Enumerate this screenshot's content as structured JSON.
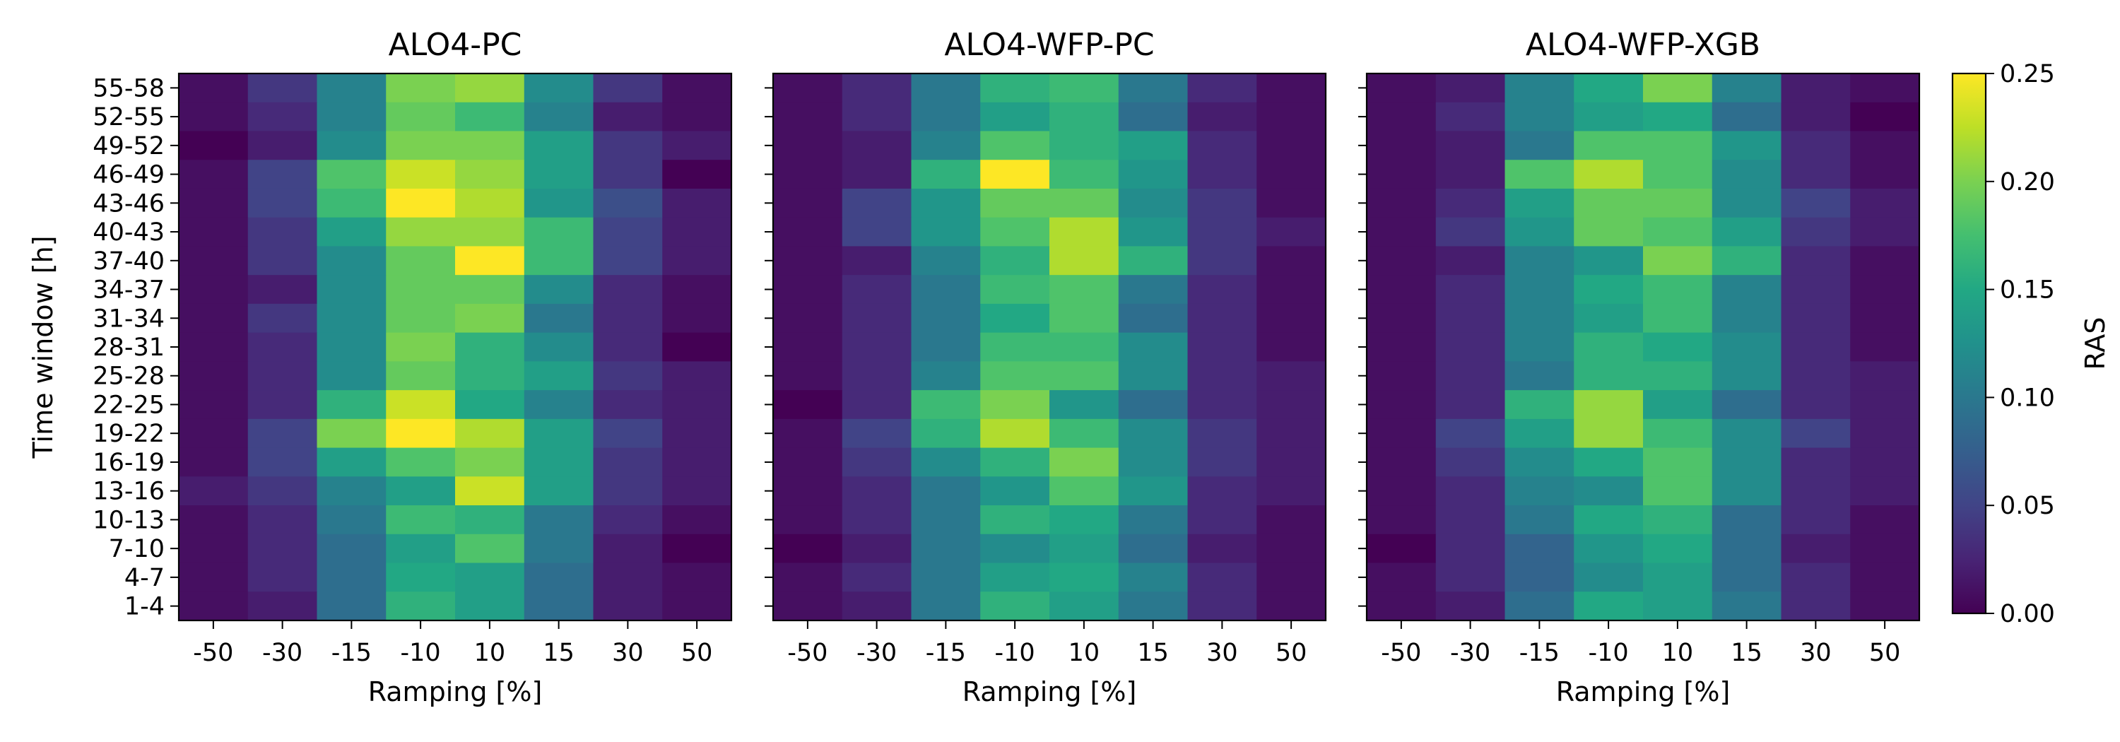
{
  "chart_data": [
    {
      "type": "heatmap",
      "title": "ALO4-PC",
      "xlabel": "Ramping [%]",
      "ylabel": "Time window [h]",
      "x_categories": [
        "-50",
        "-30",
        "-15",
        "-10",
        "10",
        "15",
        "30",
        "50"
      ],
      "y_categories": [
        "55-58",
        "52-55",
        "49-52",
        "46-49",
        "43-46",
        "40-43",
        "37-40",
        "34-37",
        "31-34",
        "28-31",
        "25-28",
        "22-25",
        "19-22",
        "16-19",
        "13-16",
        "10-13",
        "7-10",
        "4-7",
        "1-4"
      ],
      "values": [
        [
          0.01,
          0.04,
          0.11,
          0.2,
          0.21,
          0.12,
          0.04,
          0.01
        ],
        [
          0.01,
          0.03,
          0.11,
          0.19,
          0.17,
          0.11,
          0.02,
          0.01
        ],
        [
          0.0,
          0.02,
          0.12,
          0.2,
          0.2,
          0.14,
          0.04,
          0.02
        ],
        [
          0.01,
          0.05,
          0.18,
          0.23,
          0.21,
          0.14,
          0.04,
          0.0
        ],
        [
          0.01,
          0.05,
          0.17,
          0.25,
          0.22,
          0.13,
          0.06,
          0.02
        ],
        [
          0.01,
          0.04,
          0.14,
          0.21,
          0.21,
          0.17,
          0.05,
          0.02
        ],
        [
          0.01,
          0.04,
          0.12,
          0.19,
          0.25,
          0.17,
          0.05,
          0.02
        ],
        [
          0.01,
          0.02,
          0.12,
          0.19,
          0.19,
          0.12,
          0.03,
          0.01
        ],
        [
          0.01,
          0.04,
          0.12,
          0.19,
          0.2,
          0.1,
          0.03,
          0.01
        ],
        [
          0.01,
          0.03,
          0.12,
          0.2,
          0.16,
          0.12,
          0.03,
          0.0
        ],
        [
          0.01,
          0.03,
          0.12,
          0.19,
          0.16,
          0.14,
          0.04,
          0.02
        ],
        [
          0.01,
          0.03,
          0.16,
          0.23,
          0.15,
          0.11,
          0.03,
          0.02
        ],
        [
          0.01,
          0.05,
          0.2,
          0.25,
          0.22,
          0.14,
          0.05,
          0.02
        ],
        [
          0.01,
          0.05,
          0.14,
          0.18,
          0.2,
          0.14,
          0.04,
          0.02
        ],
        [
          0.02,
          0.04,
          0.11,
          0.14,
          0.23,
          0.14,
          0.04,
          0.02
        ],
        [
          0.01,
          0.03,
          0.1,
          0.17,
          0.16,
          0.1,
          0.03,
          0.01
        ],
        [
          0.01,
          0.03,
          0.09,
          0.14,
          0.18,
          0.1,
          0.02,
          0.0
        ],
        [
          0.01,
          0.03,
          0.09,
          0.15,
          0.14,
          0.09,
          0.02,
          0.01
        ],
        [
          0.01,
          0.02,
          0.09,
          0.16,
          0.14,
          0.09,
          0.02,
          0.01
        ]
      ]
    },
    {
      "type": "heatmap",
      "title": "ALO4-WFP-PC",
      "xlabel": "Ramping [%]",
      "ylabel": "",
      "x_categories": [
        "-50",
        "-30",
        "-15",
        "-10",
        "10",
        "15",
        "30",
        "50"
      ],
      "y_categories": [
        "55-58",
        "52-55",
        "49-52",
        "46-49",
        "43-46",
        "40-43",
        "37-40",
        "34-37",
        "31-34",
        "28-31",
        "25-28",
        "22-25",
        "19-22",
        "16-19",
        "13-16",
        "10-13",
        "7-10",
        "4-7",
        "1-4"
      ],
      "values": [
        [
          0.01,
          0.03,
          0.1,
          0.16,
          0.17,
          0.1,
          0.03,
          0.01
        ],
        [
          0.01,
          0.03,
          0.1,
          0.14,
          0.16,
          0.09,
          0.02,
          0.01
        ],
        [
          0.01,
          0.02,
          0.11,
          0.18,
          0.16,
          0.14,
          0.03,
          0.01
        ],
        [
          0.01,
          0.02,
          0.16,
          0.25,
          0.17,
          0.13,
          0.03,
          0.01
        ],
        [
          0.01,
          0.05,
          0.13,
          0.19,
          0.19,
          0.12,
          0.04,
          0.01
        ],
        [
          0.01,
          0.05,
          0.13,
          0.18,
          0.22,
          0.13,
          0.04,
          0.02
        ],
        [
          0.01,
          0.02,
          0.11,
          0.16,
          0.22,
          0.16,
          0.04,
          0.01
        ],
        [
          0.01,
          0.03,
          0.1,
          0.17,
          0.18,
          0.1,
          0.03,
          0.01
        ],
        [
          0.01,
          0.03,
          0.1,
          0.15,
          0.18,
          0.09,
          0.03,
          0.01
        ],
        [
          0.01,
          0.03,
          0.1,
          0.17,
          0.17,
          0.12,
          0.03,
          0.01
        ],
        [
          0.01,
          0.03,
          0.11,
          0.18,
          0.18,
          0.12,
          0.03,
          0.02
        ],
        [
          0.0,
          0.03,
          0.17,
          0.2,
          0.13,
          0.09,
          0.03,
          0.02
        ],
        [
          0.01,
          0.05,
          0.16,
          0.22,
          0.17,
          0.12,
          0.04,
          0.02
        ],
        [
          0.01,
          0.04,
          0.12,
          0.16,
          0.2,
          0.12,
          0.04,
          0.02
        ],
        [
          0.01,
          0.03,
          0.1,
          0.13,
          0.18,
          0.13,
          0.03,
          0.02
        ],
        [
          0.01,
          0.03,
          0.1,
          0.16,
          0.15,
          0.1,
          0.03,
          0.01
        ],
        [
          0.0,
          0.02,
          0.1,
          0.12,
          0.14,
          0.09,
          0.02,
          0.01
        ],
        [
          0.01,
          0.03,
          0.1,
          0.14,
          0.15,
          0.11,
          0.03,
          0.01
        ],
        [
          0.01,
          0.02,
          0.1,
          0.16,
          0.14,
          0.1,
          0.03,
          0.01
        ]
      ]
    },
    {
      "type": "heatmap",
      "title": "ALO4-WFP-XGB",
      "xlabel": "Ramping [%]",
      "ylabel": "",
      "x_categories": [
        "-50",
        "-30",
        "-15",
        "-10",
        "10",
        "15",
        "30",
        "50"
      ],
      "y_categories": [
        "55-58",
        "52-55",
        "49-52",
        "46-49",
        "43-46",
        "40-43",
        "37-40",
        "34-37",
        "31-34",
        "28-31",
        "25-28",
        "22-25",
        "19-22",
        "16-19",
        "13-16",
        "10-13",
        "7-10",
        "4-7",
        "1-4"
      ],
      "values": [
        [
          0.01,
          0.02,
          0.11,
          0.15,
          0.2,
          0.11,
          0.02,
          0.01
        ],
        [
          0.01,
          0.03,
          0.11,
          0.14,
          0.15,
          0.09,
          0.02,
          0.0
        ],
        [
          0.01,
          0.02,
          0.1,
          0.18,
          0.18,
          0.13,
          0.03,
          0.01
        ],
        [
          0.01,
          0.02,
          0.18,
          0.22,
          0.18,
          0.12,
          0.03,
          0.01
        ],
        [
          0.01,
          0.03,
          0.14,
          0.19,
          0.19,
          0.12,
          0.05,
          0.02
        ],
        [
          0.01,
          0.04,
          0.13,
          0.19,
          0.18,
          0.14,
          0.04,
          0.02
        ],
        [
          0.01,
          0.02,
          0.11,
          0.13,
          0.2,
          0.16,
          0.03,
          0.01
        ],
        [
          0.01,
          0.03,
          0.11,
          0.15,
          0.17,
          0.11,
          0.03,
          0.01
        ],
        [
          0.01,
          0.03,
          0.11,
          0.14,
          0.17,
          0.11,
          0.03,
          0.01
        ],
        [
          0.01,
          0.03,
          0.11,
          0.16,
          0.15,
          0.12,
          0.03,
          0.01
        ],
        [
          0.01,
          0.03,
          0.1,
          0.16,
          0.16,
          0.12,
          0.03,
          0.02
        ],
        [
          0.01,
          0.03,
          0.16,
          0.21,
          0.14,
          0.09,
          0.03,
          0.02
        ],
        [
          0.01,
          0.05,
          0.14,
          0.21,
          0.17,
          0.12,
          0.05,
          0.02
        ],
        [
          0.01,
          0.04,
          0.12,
          0.15,
          0.18,
          0.12,
          0.03,
          0.02
        ],
        [
          0.01,
          0.03,
          0.11,
          0.12,
          0.18,
          0.12,
          0.03,
          0.02
        ],
        [
          0.01,
          0.03,
          0.1,
          0.15,
          0.16,
          0.09,
          0.03,
          0.01
        ],
        [
          0.0,
          0.03,
          0.08,
          0.13,
          0.15,
          0.09,
          0.02,
          0.01
        ],
        [
          0.01,
          0.03,
          0.08,
          0.12,
          0.14,
          0.09,
          0.03,
          0.01
        ],
        [
          0.01,
          0.02,
          0.09,
          0.15,
          0.14,
          0.1,
          0.03,
          0.01
        ]
      ]
    }
  ],
  "colorbar": {
    "label": "RAS",
    "colormap": "viridis",
    "range": [
      0,
      0.25
    ],
    "ticks": [
      "0.00",
      "0.05",
      "0.10",
      "0.15",
      "0.20",
      "0.25"
    ],
    "tick_values": [
      0,
      0.05,
      0.1,
      0.15,
      0.2,
      0.25
    ]
  }
}
